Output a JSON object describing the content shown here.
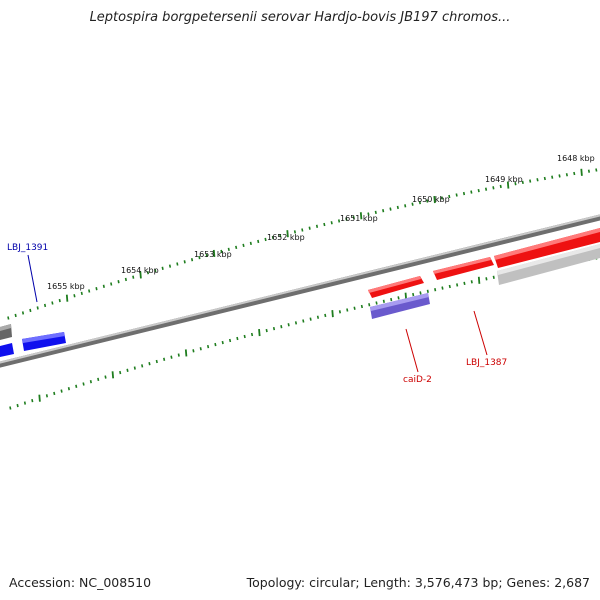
{
  "title": "Leptospira borgpetersenii serovar Hardjo-bovis JB197 chromos...",
  "footer": {
    "accession": "Accession: NC_008510",
    "topology": "Topology: circular; Length: 3,576,473 bp; Genes: 2,687"
  },
  "colors": {
    "tick": "#1e7d1e",
    "backbone": "#8a8a8a",
    "gene_forward": "#ee1111",
    "gene_reverse": "#1010ee",
    "gene_other": "#7a6ad8",
    "gene_gray": "#777777",
    "gene_lightgray": "#c4c4c4",
    "label_red": "#cc0000",
    "label_blue": "#0000aa"
  },
  "ticks": [
    {
      "label": "1648 kbp"
    },
    {
      "label": "1649 kbp"
    },
    {
      "label": "1650 kbp"
    },
    {
      "label": "1651 kbp"
    },
    {
      "label": "1652 kbp"
    },
    {
      "label": "1653 kbp"
    },
    {
      "label": "1654 kbp"
    },
    {
      "label": "1655 kbp"
    }
  ],
  "gene_labels": [
    {
      "name": "LBJ_1391",
      "color": "blue"
    },
    {
      "name": "caiD-2",
      "color": "red"
    },
    {
      "name": "LBJ_1387",
      "color": "red"
    }
  ]
}
